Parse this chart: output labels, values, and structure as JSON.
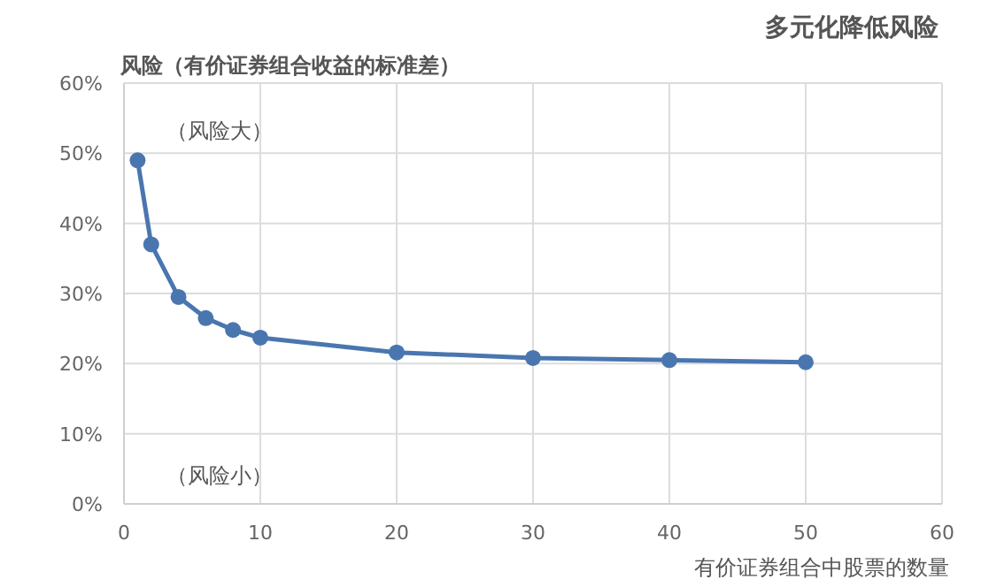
{
  "chart_data": {
    "type": "line",
    "title": "多元化降低风险",
    "ylabel": "风险（有价证券组合收益的标准差）",
    "xlabel": "有价证券组合中股票的数量",
    "annotations": [
      "（风险大）",
      "（风险小）"
    ],
    "x": [
      1,
      2,
      4,
      6,
      8,
      10,
      20,
      30,
      40,
      50
    ],
    "series": [
      {
        "color": "#4a76b0",
        "values": [
          49,
          37,
          29.5,
          26.5,
          24.8,
          23.7,
          21.6,
          20.8,
          20.5,
          20.2
        ]
      }
    ],
    "xlim": [
      0,
      60
    ],
    "xticks": [
      0,
      10,
      20,
      30,
      40,
      50,
      60
    ],
    "ylim": [
      0,
      60
    ],
    "yticks": [
      {
        "value": 0,
        "label": "0%"
      },
      {
        "value": 10,
        "label": "10%"
      },
      {
        "value": 20,
        "label": "20%"
      },
      {
        "value": 30,
        "label": "30%"
      },
      {
        "value": 40,
        "label": "40%"
      },
      {
        "value": 50,
        "label": "50%"
      },
      {
        "value": 60,
        "label": "60%"
      }
    ],
    "grid": true,
    "marker": "circle",
    "line_style": "solid"
  }
}
